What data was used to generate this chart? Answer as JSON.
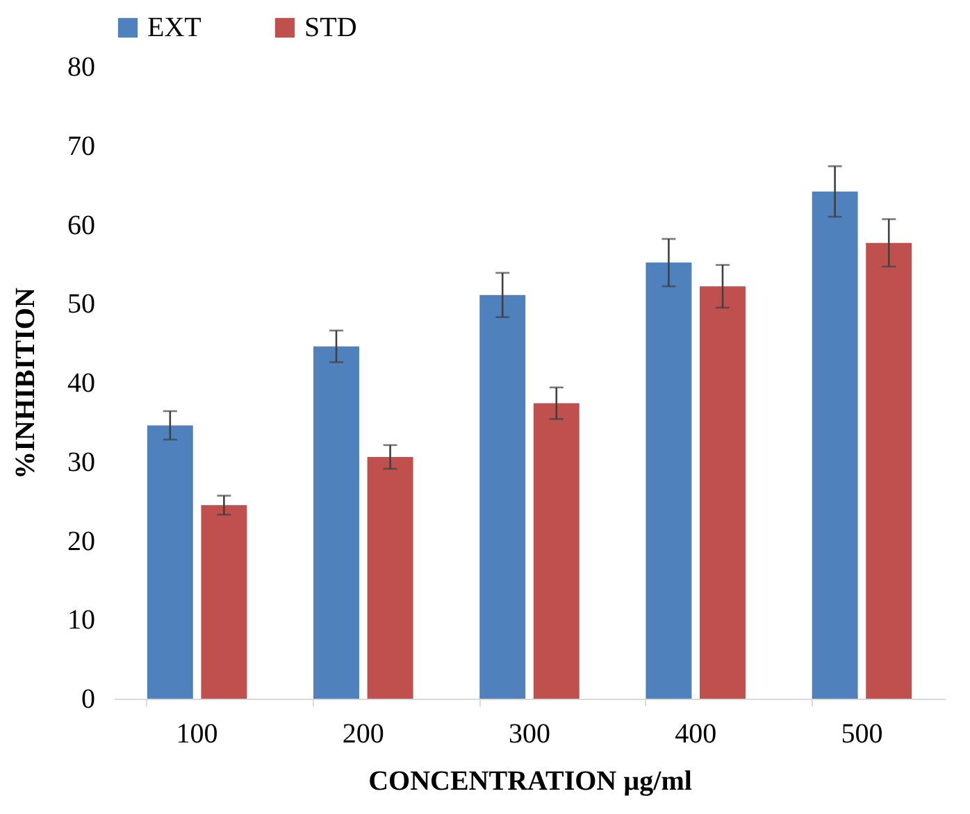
{
  "chart_data": {
    "type": "bar",
    "xlabel": "CONCENTRATION µg/ml",
    "ylabel": "%INHIBITION",
    "categories": [
      "100",
      "200",
      "300",
      "400",
      "500"
    ],
    "series": [
      {
        "name": "EXT",
        "color": "#4f81bd",
        "values": [
          34.6,
          44.6,
          51.1,
          55.2,
          64.2
        ],
        "errors": [
          1.8,
          2,
          2.8,
          3,
          3.2
        ]
      },
      {
        "name": "STD",
        "color": "#c0504d",
        "values": [
          24.5,
          30.6,
          37.4,
          52.2,
          57.7
        ],
        "errors": [
          1.2,
          1.5,
          2,
          2.7,
          3
        ]
      }
    ],
    "ylim": [
      0,
      80
    ],
    "yticks": [
      0,
      10,
      20,
      30,
      40,
      50,
      60,
      70,
      80
    ],
    "grid": false,
    "legend": "top"
  }
}
